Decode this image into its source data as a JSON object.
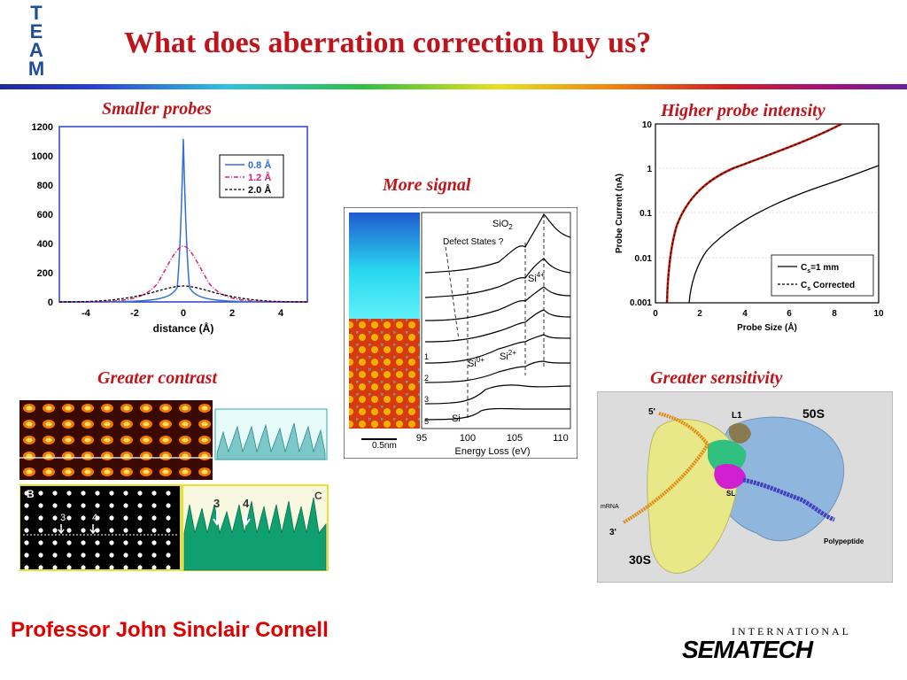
{
  "logo": {
    "letters": [
      "T",
      "E",
      "A",
      "M"
    ]
  },
  "title": "What does aberration correction buy us?",
  "panels": {
    "smaller_probes": {
      "caption": "Smaller probes",
      "xlabel": "distance (Å)",
      "yticks": [
        "1200",
        "1000",
        "800",
        "600",
        "400",
        "200",
        "0"
      ],
      "xticks": [
        "-4",
        "-2",
        "0",
        "2",
        "4"
      ],
      "legend": [
        {
          "name": "0.8 Å",
          "color": "#2f6fd6"
        },
        {
          "name": "1.2 Å",
          "color": "#d6207a"
        },
        {
          "name": "2.0 Å",
          "color": "#000000"
        }
      ]
    },
    "more_signal": {
      "caption": "More signal",
      "xlabel": "Energy Loss (eV)",
      "xticks": [
        "95",
        "100",
        "105",
        "110"
      ],
      "scale_bar": "0.5nm",
      "labels": {
        "defect": "Defect States ?",
        "sio2": "SiO",
        "sio2_sub": "2",
        "si4": "Si",
        "si4_sup": "4+",
        "si0": "Si",
        "si0_sup": "0+",
        "si2": "Si",
        "si2_sup": "2+",
        "si": "Si",
        "row_numbers": [
          "1",
          "2",
          "3",
          "5"
        ]
      }
    },
    "higher_intensity": {
      "caption": "Higher probe intensity",
      "ylabel": "Probe Current (nA)",
      "xlabel": "Probe Size (Å)",
      "yticks": [
        "10",
        "1",
        "0.1",
        "0.01",
        "0.001"
      ],
      "xticks": [
        "0",
        "2",
        "4",
        "6",
        "8",
        "10"
      ],
      "legend": [
        {
          "name": "C",
          "sub": "s",
          "rest": "=1 mm",
          "color": "#000000"
        },
        {
          "name": "C",
          "sub": "s",
          "rest": " Corrected",
          "color": "#000000"
        }
      ]
    },
    "greater_contrast": {
      "caption": "Greater contrast",
      "labels": {
        "b": "B",
        "c": "C",
        "n3": "3",
        "n4": "4"
      }
    },
    "greater_sensitivity": {
      "caption": "Greater sensitivity",
      "labels": {
        "s50": "50S",
        "s30": "30S",
        "l1": "L1",
        "five": "5'",
        "three": "3'",
        "mrna": "mRNA",
        "poly": "Polypeptide",
        "sl": "SL"
      }
    }
  },
  "footer": "Professor John Sinclair   Cornell",
  "sematech": {
    "top": "INTERNATIONAL",
    "main": "SEMATECH"
  },
  "colors": {
    "title": "#c0141c",
    "footer": "#e00000"
  }
}
